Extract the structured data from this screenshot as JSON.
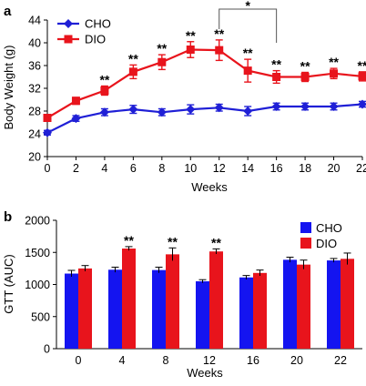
{
  "chart_data": [
    {
      "type": "line",
      "panel_label": "a",
      "xlabel": "Weeks",
      "ylabel": "Body Weight (g)",
      "x": [
        0,
        2,
        4,
        6,
        8,
        10,
        12,
        14,
        16,
        18,
        20,
        22
      ],
      "xlim": [
        0,
        22
      ],
      "ylim": [
        20,
        44
      ],
      "yticks": [
        20,
        24,
        28,
        32,
        36,
        40,
        44
      ],
      "legend_position": "top-left",
      "series": [
        {
          "name": "CHO",
          "color": "#1f1fd6",
          "marker": "diamond",
          "values": [
            24.2,
            26.7,
            27.8,
            28.3,
            27.8,
            28.3,
            28.6,
            28.0,
            28.8,
            28.8,
            28.8,
            29.2
          ],
          "errors": [
            0.4,
            0.5,
            0.6,
            0.7,
            0.6,
            0.8,
            0.6,
            0.8,
            0.6,
            0.6,
            0.6,
            0.5
          ]
        },
        {
          "name": "DIO",
          "color": "#e8141c",
          "marker": "square",
          "values": [
            26.8,
            29.8,
            31.6,
            34.9,
            36.6,
            38.8,
            38.7,
            35.1,
            34.0,
            34.0,
            34.6,
            34.1
          ],
          "errors": [
            0.5,
            0.6,
            0.8,
            1.2,
            1.3,
            1.4,
            1.8,
            2.0,
            1.1,
            0.8,
            0.9,
            0.8
          ]
        }
      ],
      "annotations": [
        {
          "x": 4,
          "text": "**"
        },
        {
          "x": 6,
          "text": "**"
        },
        {
          "x": 8,
          "text": "**"
        },
        {
          "x": 10,
          "text": "**"
        },
        {
          "x": 12,
          "text": "**"
        },
        {
          "x": 14,
          "text": "**"
        },
        {
          "x": 16,
          "text": "**"
        },
        {
          "x": 18,
          "text": "**"
        },
        {
          "x": 20,
          "text": "**"
        },
        {
          "x": 22,
          "text": "**"
        }
      ],
      "bracket": {
        "x1": 12,
        "x2": 16,
        "text": "*"
      }
    },
    {
      "type": "bar",
      "panel_label": "b",
      "xlabel": "Weeks",
      "ylabel": "GTT (AUC)",
      "categories": [
        "0",
        "4",
        "8",
        "12",
        "16",
        "20",
        "22"
      ],
      "ylim": [
        0,
        2000
      ],
      "yticks": [
        0,
        500,
        1000,
        1500,
        2000
      ],
      "legend_position": "top-right",
      "series": [
        {
          "name": "CHO",
          "color": "#1414f0",
          "values": [
            1170,
            1230,
            1225,
            1050,
            1110,
            1385,
            1375
          ],
          "errors": [
            50,
            40,
            45,
            25,
            30,
            40,
            30
          ]
        },
        {
          "name": "DIO",
          "color": "#e8141c",
          "values": [
            1250,
            1560,
            1470,
            1515,
            1180,
            1310,
            1400
          ],
          "errors": [
            45,
            30,
            100,
            40,
            45,
            70,
            90
          ]
        }
      ],
      "annotations": [
        {
          "category": "4",
          "text": "**"
        },
        {
          "category": "8",
          "text": "**"
        },
        {
          "category": "12",
          "text": "**"
        }
      ]
    }
  ]
}
